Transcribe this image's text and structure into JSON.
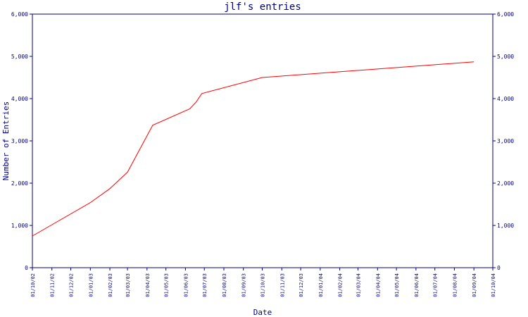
{
  "chart_data": {
    "type": "line",
    "title": "jlf's entries",
    "xlabel": "Date",
    "ylabel": "Number of Entries",
    "xlim": [
      "01/10/02",
      "01/10/04"
    ],
    "ylim": [
      0,
      6000
    ],
    "yticks": [
      0,
      1000,
      2000,
      3000,
      4000,
      5000,
      6000
    ],
    "ytick_labels": [
      "0",
      "1,000",
      "2,000",
      "3,000",
      "4,000",
      "5,000",
      "6,000"
    ],
    "xticks": [
      "01/10/02",
      "01/11/02",
      "01/12/02",
      "01/01/03",
      "01/02/03",
      "01/03/03",
      "01/04/03",
      "01/05/03",
      "01/06/03",
      "01/07/03",
      "01/08/03",
      "01/09/03",
      "01/10/03",
      "01/11/03",
      "01/12/03",
      "01/01/04",
      "01/02/04",
      "01/03/04",
      "01/04/04",
      "01/05/04",
      "01/06/04",
      "01/07/04",
      "01/08/04",
      "01/09/04",
      "01/10/04"
    ],
    "grid": false,
    "colors": {
      "axis": "#000080",
      "text": "#000080",
      "series": "#ff0000"
    },
    "series": [
      {
        "x": [
          "01/10/02",
          "01/01/03",
          "01/02/03",
          "01/03/03",
          "10/04/03",
          "08/06/03",
          "18/06/03",
          "27/06/03",
          "01/10/03",
          "01/09/04"
        ],
        "values": [
          750,
          1540,
          1870,
          2260,
          3370,
          3760,
          3920,
          4120,
          4500,
          4870
        ]
      }
    ]
  }
}
